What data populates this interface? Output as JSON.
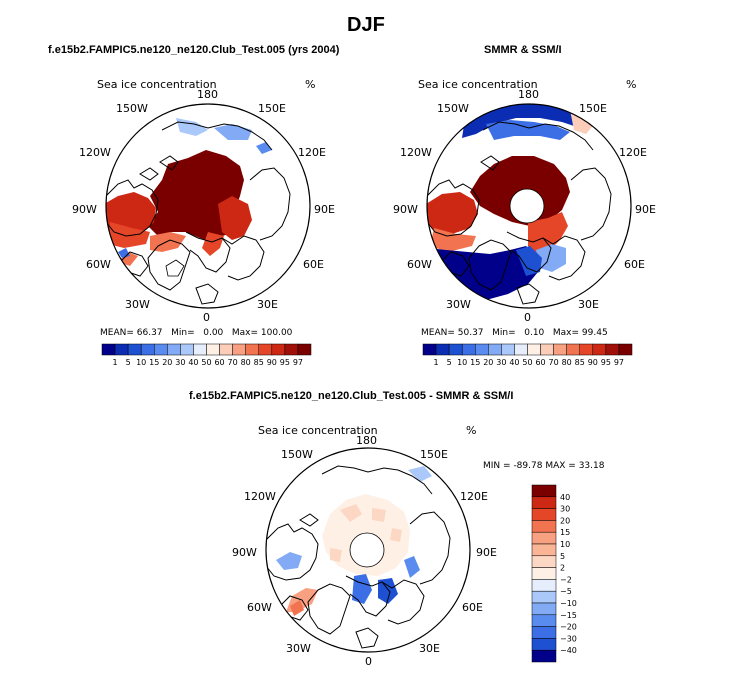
{
  "title": "DJF",
  "panels": [
    {
      "subtitle": "f.e15b2.FAMPIC5.ne120_ne120.Club_Test.005 (yrs 2004)",
      "field": "Sea ice concentration",
      "units": "%",
      "stats": {
        "mean_label": "MEAN=",
        "mean": "66.37",
        "min_label": "Min=",
        "min": "0.00",
        "max_label": "Max=",
        "max": "100.00"
      },
      "lon_labels": [
        "180",
        "150W",
        "150E",
        "120W",
        "120E",
        "90W",
        "90E",
        "60W",
        "60E",
        "30W",
        "30E",
        "0"
      ],
      "has_pole_hole": false
    },
    {
      "subtitle": "SMMR & SSM/I",
      "field": "Sea ice concentration",
      "units": "%",
      "stats": {
        "mean_label": "MEAN=",
        "mean": "50.37",
        "min_label": "Min=",
        "min": "0.10",
        "max_label": "Max=",
        "max": "99.45"
      },
      "lon_labels": [
        "180",
        "150W",
        "150E",
        "120W",
        "120E",
        "90W",
        "90E",
        "60W",
        "60E",
        "30W",
        "30E",
        "0"
      ],
      "has_pole_hole": true
    },
    {
      "subtitle": "f.e15b2.FAMPIC5.ne120_ne120.Club_Test.005 - SMMR & SSM/I",
      "field": "Sea ice concentration",
      "units": "%",
      "stats": {
        "min_label": "MIN =",
        "min": "-89.78",
        "max_label": "MAX =",
        "max": "33.18"
      },
      "lon_labels": [
        "180",
        "150W",
        "150E",
        "120W",
        "120E",
        "90W",
        "90E",
        "60W",
        "60E",
        "30W",
        "30E",
        "0"
      ],
      "has_pole_hole": true
    }
  ],
  "colorbar_conc": {
    "labels": [
      "1",
      "5",
      "10",
      "15",
      "20",
      "30",
      "40",
      "50",
      "60",
      "70",
      "80",
      "85",
      "90",
      "95",
      "97"
    ],
    "colors": [
      "#00008b",
      "#0a2db4",
      "#1e50d2",
      "#3c6ee6",
      "#5a8cf0",
      "#82aaf5",
      "#aac8fa",
      "#e6eefc",
      "#fff0e6",
      "#fccdb9",
      "#f8a082",
      "#f27350",
      "#e64628",
      "#cd2814",
      "#a01008",
      "#7a0000"
    ]
  },
  "colorbar_diff": {
    "labels": [
      "40",
      "30",
      "20",
      "15",
      "10",
      "5",
      "2",
      "−2",
      "−5",
      "−10",
      "−15",
      "−20",
      "−30",
      "−40"
    ],
    "colors": [
      "#7a0000",
      "#cd2814",
      "#e64628",
      "#f27350",
      "#f8a082",
      "#fab496",
      "#fcd7c3",
      "#fff0e6",
      "#e6eefc",
      "#aac8fa",
      "#82aaf5",
      "#5a8cf0",
      "#3c6ee6",
      "#1e50d2",
      "#00008b"
    ]
  }
}
